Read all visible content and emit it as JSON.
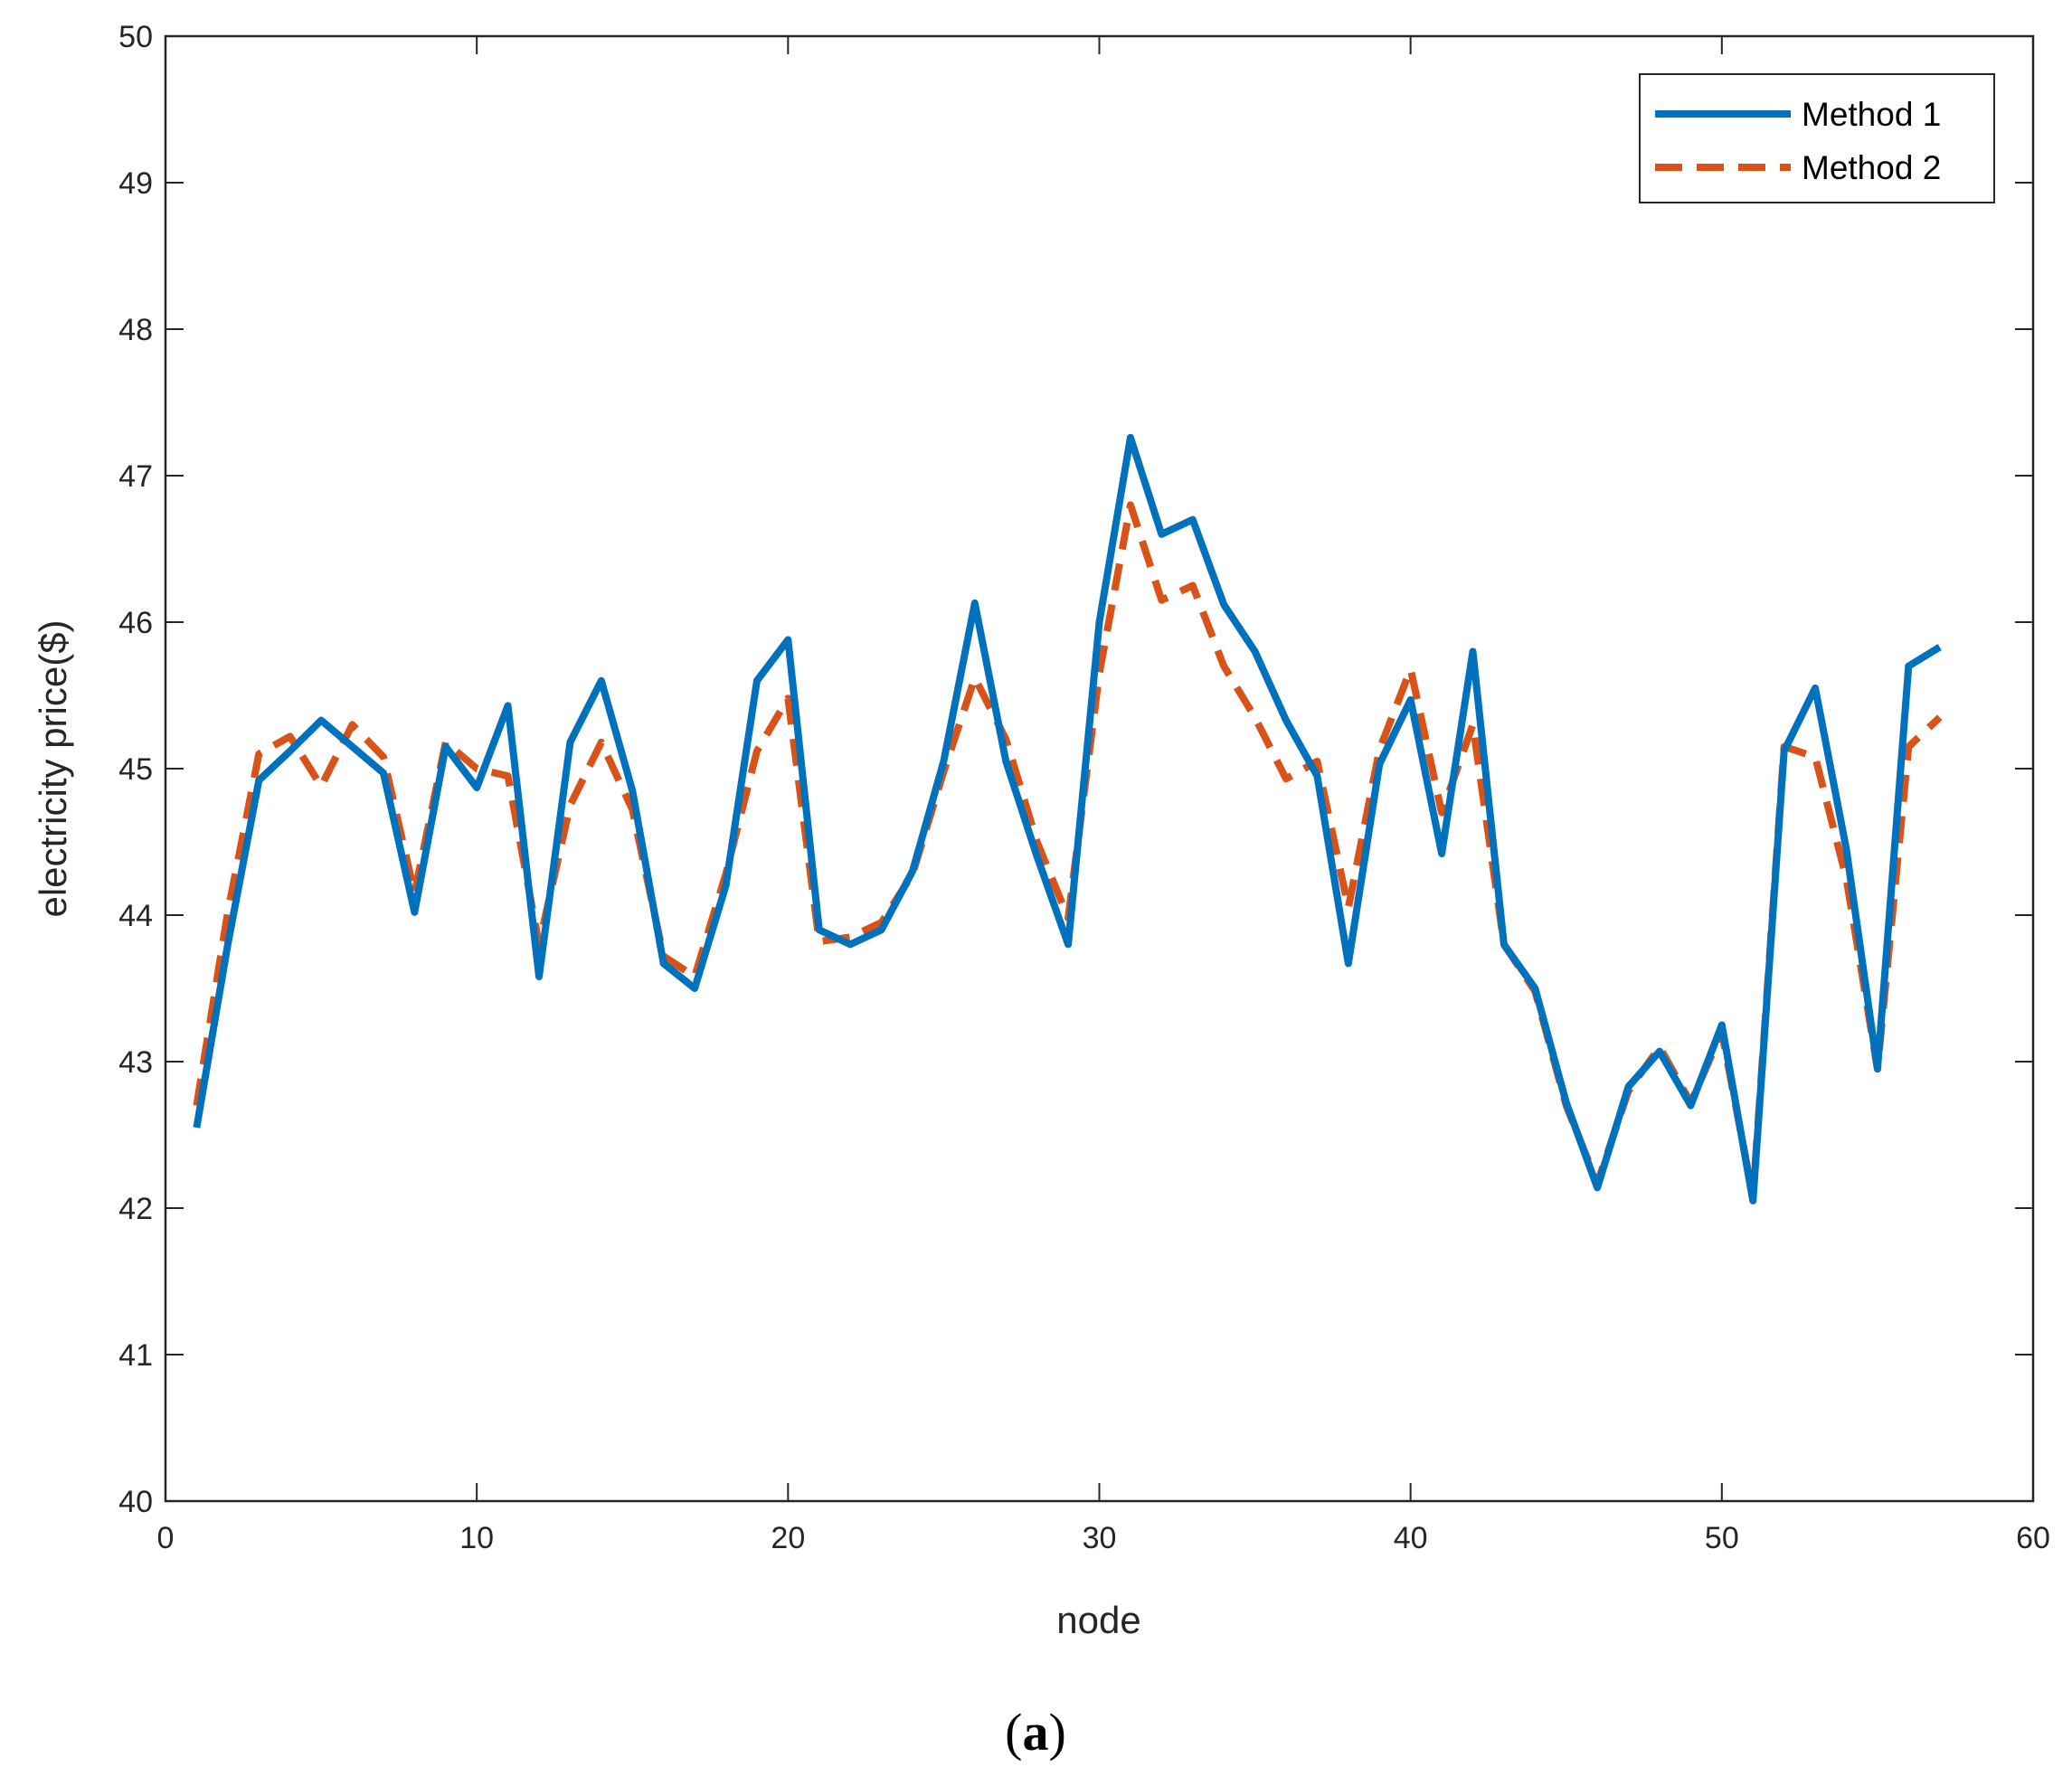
{
  "chart_data": {
    "type": "line",
    "xlabel": "node",
    "ylabel": "electricity price($)",
    "xlim": [
      0,
      60
    ],
    "ylim": [
      40,
      50
    ],
    "xticks": [
      0,
      10,
      20,
      30,
      40,
      50,
      60
    ],
    "yticks": [
      40,
      41,
      42,
      43,
      44,
      45,
      46,
      47,
      48,
      49,
      50
    ],
    "grid": false,
    "legend_position": "top-right",
    "caption_prefix": "(",
    "caption_letter": "a",
    "caption_suffix": ")",
    "x": [
      1,
      2,
      3,
      4,
      5,
      6,
      7,
      8,
      9,
      10,
      11,
      12,
      13,
      14,
      15,
      16,
      17,
      18,
      19,
      20,
      21,
      22,
      23,
      24,
      25,
      26,
      27,
      28,
      29,
      30,
      31,
      32,
      33,
      34,
      35,
      36,
      37,
      38,
      39,
      40,
      41,
      42,
      43,
      44,
      45,
      46,
      47,
      48,
      49,
      50,
      51,
      52,
      53,
      54,
      55,
      56,
      57
    ],
    "series": [
      {
        "name": "Method 1",
        "color": "#0072BD",
        "style": "solid",
        "values": [
          42.55,
          43.8,
          44.92,
          45.12,
          45.33,
          45.15,
          44.97,
          44.02,
          45.15,
          44.87,
          45.43,
          43.58,
          45.18,
          45.6,
          44.85,
          43.67,
          43.5,
          44.2,
          45.6,
          45.88,
          43.9,
          43.8,
          43.9,
          44.3,
          45.05,
          46.13,
          45.05,
          44.4,
          43.8,
          46,
          47.26,
          46.6,
          46.7,
          46.12,
          45.8,
          45.33,
          44.95,
          43.67,
          45.03,
          45.47,
          44.42,
          45.8,
          43.8,
          43.5,
          42.72,
          42.14,
          42.83,
          43.07,
          42.7,
          43.25,
          42.05,
          45.12,
          45.55,
          44.45,
          42.95,
          45.7,
          45.83
        ]
      },
      {
        "name": "Method 2",
        "color": "#D95319",
        "style": "dashed",
        "values": [
          42.7,
          44.02,
          45.1,
          45.22,
          44.88,
          45.3,
          45.08,
          44.15,
          45.18,
          45,
          44.95,
          43.8,
          44.75,
          45.18,
          44.72,
          43.72,
          43.58,
          44.28,
          45.12,
          45.48,
          43.82,
          43.85,
          43.95,
          44.28,
          44.98,
          45.62,
          45.2,
          44.5,
          43.98,
          45.65,
          46.8,
          46.15,
          46.25,
          45.7,
          45.35,
          44.93,
          45.05,
          44.05,
          45.13,
          45.68,
          44.7,
          45.3,
          43.8,
          43.48,
          42.7,
          42.17,
          42.8,
          43.1,
          42.72,
          43.2,
          42.08,
          45.15,
          45.08,
          44.25,
          42.95,
          45.15,
          45.35
        ]
      }
    ]
  }
}
